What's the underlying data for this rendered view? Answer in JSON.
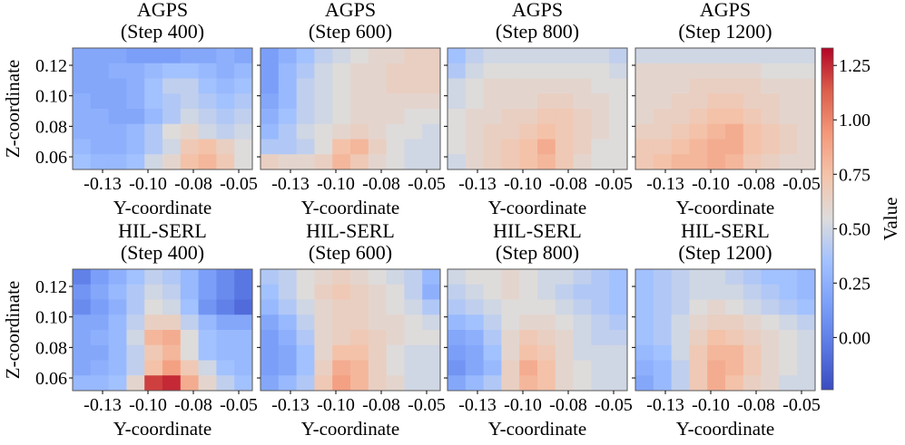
{
  "chart_data": {
    "type": "heatmap",
    "colormap": "coolwarm",
    "colorbar": {
      "label": "Value",
      "range": [
        -0.24,
        1.33
      ],
      "ticks": [
        0,
        0.25,
        0.5,
        0.75,
        1.0,
        1.25
      ],
      "tick_labels": [
        "0.00",
        "0.25",
        "0.50",
        "0.75",
        "1.00",
        "1.25"
      ]
    },
    "xlabel": "Y-coordinate",
    "ylabel": "Z-coordinate",
    "xlim": [
      -0.1415,
      -0.0425
    ],
    "ylim": [
      0.0517,
      0.1313
    ],
    "xticks": [
      -0.125,
      -0.1,
      -0.075,
      -0.05
    ],
    "xtick_labels": [
      "-0.13",
      "-0.10",
      "-0.08",
      "-0.05"
    ],
    "yticks": [
      0.06,
      0.08,
      0.1,
      0.12
    ],
    "ytick_labels": [
      "0.06",
      "0.08",
      "0.10",
      "0.12"
    ],
    "grid": false,
    "panels": [
      {
        "method": "AGPS",
        "step": "(Step 400)",
        "values": [
          [
            0.2,
            0.2,
            0.2,
            0.15,
            0.15,
            0.15,
            0.2,
            0.2,
            0.25,
            0.2
          ],
          [
            0.2,
            0.2,
            0.25,
            0.25,
            0.3,
            0.35,
            0.35,
            0.3,
            0.25,
            0.3
          ],
          [
            0.2,
            0.2,
            0.2,
            0.25,
            0.35,
            0.45,
            0.45,
            0.35,
            0.3,
            0.35
          ],
          [
            0.25,
            0.2,
            0.2,
            0.25,
            0.35,
            0.4,
            0.45,
            0.4,
            0.35,
            0.4
          ],
          [
            0.25,
            0.25,
            0.2,
            0.2,
            0.3,
            0.4,
            0.5,
            0.45,
            0.4,
            0.45
          ],
          [
            0.25,
            0.25,
            0.25,
            0.3,
            0.4,
            0.55,
            0.6,
            0.5,
            0.45,
            0.5
          ],
          [
            0.3,
            0.25,
            0.25,
            0.3,
            0.4,
            0.5,
            0.7,
            0.75,
            0.65,
            0.55
          ],
          [
            0.35,
            0.3,
            0.3,
            0.35,
            0.5,
            0.6,
            0.75,
            0.8,
            0.7,
            0.55
          ]
        ]
      },
      {
        "method": "AGPS",
        "step": "(Step 600)",
        "values": [
          [
            0.15,
            0.25,
            0.35,
            0.45,
            0.5,
            0.55,
            0.6,
            0.6,
            0.65,
            0.65
          ],
          [
            0.15,
            0.3,
            0.4,
            0.5,
            0.55,
            0.6,
            0.6,
            0.65,
            0.65,
            0.65
          ],
          [
            0.15,
            0.3,
            0.45,
            0.5,
            0.55,
            0.6,
            0.6,
            0.65,
            0.65,
            0.65
          ],
          [
            0.2,
            0.3,
            0.45,
            0.5,
            0.55,
            0.6,
            0.6,
            0.6,
            0.6,
            0.6
          ],
          [
            0.25,
            0.35,
            0.45,
            0.5,
            0.55,
            0.6,
            0.6,
            0.6,
            0.55,
            0.55
          ],
          [
            0.3,
            0.4,
            0.5,
            0.55,
            0.6,
            0.65,
            0.6,
            0.55,
            0.55,
            0.5
          ],
          [
            0.4,
            0.4,
            0.45,
            0.55,
            0.75,
            0.8,
            0.65,
            0.55,
            0.5,
            0.5
          ],
          [
            0.65,
            0.6,
            0.6,
            0.65,
            0.8,
            0.7,
            0.6,
            0.55,
            0.5,
            0.5
          ]
        ]
      },
      {
        "method": "AGPS",
        "step": "(Step 800)",
        "values": [
          [
            0.35,
            0.45,
            0.5,
            0.5,
            0.5,
            0.5,
            0.5,
            0.5,
            0.5,
            0.45
          ],
          [
            0.4,
            0.5,
            0.55,
            0.55,
            0.55,
            0.55,
            0.55,
            0.55,
            0.55,
            0.5
          ],
          [
            0.5,
            0.55,
            0.6,
            0.6,
            0.6,
            0.6,
            0.6,
            0.6,
            0.55,
            0.55
          ],
          [
            0.5,
            0.55,
            0.6,
            0.6,
            0.6,
            0.65,
            0.65,
            0.6,
            0.6,
            0.55
          ],
          [
            0.55,
            0.6,
            0.6,
            0.65,
            0.65,
            0.7,
            0.7,
            0.65,
            0.6,
            0.55
          ],
          [
            0.55,
            0.6,
            0.65,
            0.65,
            0.7,
            0.75,
            0.7,
            0.65,
            0.6,
            0.55
          ],
          [
            0.55,
            0.6,
            0.65,
            0.7,
            0.75,
            0.85,
            0.7,
            0.65,
            0.55,
            0.55
          ],
          [
            0.5,
            0.6,
            0.65,
            0.7,
            0.75,
            0.8,
            0.7,
            0.6,
            0.55,
            0.55
          ]
        ]
      },
      {
        "method": "AGPS",
        "step": "(Step 1200)",
        "values": [
          [
            0.5,
            0.5,
            0.5,
            0.5,
            0.5,
            0.5,
            0.5,
            0.5,
            0.5,
            0.5
          ],
          [
            0.6,
            0.6,
            0.6,
            0.6,
            0.6,
            0.6,
            0.6,
            0.55,
            0.55,
            0.55
          ],
          [
            0.6,
            0.6,
            0.6,
            0.65,
            0.65,
            0.65,
            0.65,
            0.6,
            0.6,
            0.6
          ],
          [
            0.6,
            0.6,
            0.65,
            0.65,
            0.7,
            0.7,
            0.65,
            0.65,
            0.6,
            0.6
          ],
          [
            0.6,
            0.65,
            0.65,
            0.7,
            0.75,
            0.75,
            0.7,
            0.65,
            0.6,
            0.6
          ],
          [
            0.65,
            0.65,
            0.7,
            0.75,
            0.8,
            0.85,
            0.75,
            0.7,
            0.65,
            0.6
          ],
          [
            0.7,
            0.7,
            0.75,
            0.8,
            0.85,
            0.85,
            0.75,
            0.7,
            0.65,
            0.6
          ],
          [
            0.7,
            0.75,
            0.8,
            0.8,
            0.85,
            0.8,
            0.7,
            0.65,
            0.6,
            0.6
          ]
        ]
      },
      {
        "method": "HIL-SERL",
        "step": "(Step 400)",
        "values": [
          [
            0.0,
            0.15,
            0.25,
            0.35,
            0.45,
            0.4,
            0.3,
            0.15,
            0.05,
            -0.05
          ],
          [
            0.1,
            0.2,
            0.3,
            0.4,
            0.5,
            0.45,
            0.3,
            0.15,
            0.05,
            -0.05
          ],
          [
            0.05,
            0.15,
            0.25,
            0.4,
            0.55,
            0.5,
            0.35,
            0.1,
            0.0,
            -0.1
          ],
          [
            0.2,
            0.2,
            0.3,
            0.45,
            0.65,
            0.65,
            0.45,
            0.3,
            0.2,
            0.2
          ],
          [
            0.2,
            0.25,
            0.3,
            0.5,
            0.8,
            0.85,
            0.55,
            0.35,
            0.3,
            0.3
          ],
          [
            0.2,
            0.2,
            0.3,
            0.45,
            0.7,
            0.8,
            0.55,
            0.35,
            0.3,
            0.3
          ],
          [
            0.2,
            0.25,
            0.3,
            0.45,
            0.75,
            0.9,
            0.7,
            0.5,
            0.35,
            0.3
          ],
          [
            0.3,
            0.3,
            0.35,
            0.6,
            1.2,
            1.25,
            0.85,
            0.6,
            0.45,
            0.35
          ]
        ]
      },
      {
        "method": "HIL-SERL",
        "step": "(Step 600)",
        "values": [
          [
            0.4,
            0.45,
            0.55,
            0.6,
            0.65,
            0.6,
            0.55,
            0.5,
            0.45,
            0.3
          ],
          [
            0.35,
            0.45,
            0.55,
            0.65,
            0.7,
            0.65,
            0.6,
            0.55,
            0.45,
            0.25
          ],
          [
            0.3,
            0.4,
            0.5,
            0.6,
            0.65,
            0.65,
            0.6,
            0.55,
            0.5,
            0.4
          ],
          [
            0.2,
            0.3,
            0.45,
            0.6,
            0.65,
            0.65,
            0.6,
            0.6,
            0.55,
            0.5
          ],
          [
            0.15,
            0.25,
            0.4,
            0.6,
            0.65,
            0.7,
            0.65,
            0.6,
            0.55,
            0.55
          ],
          [
            0.15,
            0.2,
            0.35,
            0.6,
            0.75,
            0.75,
            0.65,
            0.55,
            0.5,
            0.5
          ],
          [
            0.15,
            0.2,
            0.35,
            0.65,
            0.85,
            0.8,
            0.65,
            0.55,
            0.5,
            0.5
          ],
          [
            0.2,
            0.3,
            0.4,
            0.7,
            0.9,
            0.8,
            0.65,
            0.6,
            0.5,
            0.5
          ]
        ]
      },
      {
        "method": "HIL-SERL",
        "step": "(Step 800)",
        "values": [
          [
            0.5,
            0.55,
            0.55,
            0.6,
            0.55,
            0.5,
            0.5,
            0.45,
            0.4,
            0.35
          ],
          [
            0.45,
            0.5,
            0.55,
            0.6,
            0.55,
            0.5,
            0.45,
            0.4,
            0.4,
            0.35
          ],
          [
            0.4,
            0.45,
            0.5,
            0.55,
            0.55,
            0.55,
            0.5,
            0.45,
            0.4,
            0.35
          ],
          [
            0.3,
            0.35,
            0.45,
            0.55,
            0.6,
            0.6,
            0.55,
            0.5,
            0.45,
            0.4
          ],
          [
            0.2,
            0.25,
            0.4,
            0.6,
            0.7,
            0.65,
            0.6,
            0.5,
            0.45,
            0.45
          ],
          [
            0.15,
            0.2,
            0.35,
            0.6,
            0.75,
            0.7,
            0.6,
            0.5,
            0.5,
            0.5
          ],
          [
            0.1,
            0.2,
            0.3,
            0.65,
            0.85,
            0.75,
            0.6,
            0.55,
            0.5,
            0.5
          ],
          [
            0.2,
            0.3,
            0.4,
            0.65,
            0.8,
            0.75,
            0.6,
            0.55,
            0.5,
            0.5
          ]
        ]
      },
      {
        "method": "HIL-SERL",
        "step": "(Step 1200)",
        "values": [
          [
            0.35,
            0.4,
            0.45,
            0.5,
            0.5,
            0.45,
            0.4,
            0.35,
            0.35,
            0.3
          ],
          [
            0.35,
            0.4,
            0.45,
            0.5,
            0.5,
            0.5,
            0.45,
            0.4,
            0.35,
            0.3
          ],
          [
            0.35,
            0.4,
            0.45,
            0.55,
            0.6,
            0.55,
            0.5,
            0.45,
            0.4,
            0.35
          ],
          [
            0.35,
            0.4,
            0.5,
            0.6,
            0.65,
            0.65,
            0.6,
            0.55,
            0.5,
            0.45
          ],
          [
            0.35,
            0.4,
            0.5,
            0.65,
            0.75,
            0.7,
            0.65,
            0.6,
            0.55,
            0.5
          ],
          [
            0.3,
            0.35,
            0.5,
            0.7,
            0.8,
            0.8,
            0.7,
            0.6,
            0.55,
            0.5
          ],
          [
            0.25,
            0.3,
            0.45,
            0.7,
            0.85,
            0.8,
            0.7,
            0.6,
            0.55,
            0.5
          ],
          [
            0.2,
            0.3,
            0.45,
            0.7,
            0.85,
            0.75,
            0.65,
            0.6,
            0.5,
            0.5
          ]
        ]
      }
    ]
  }
}
